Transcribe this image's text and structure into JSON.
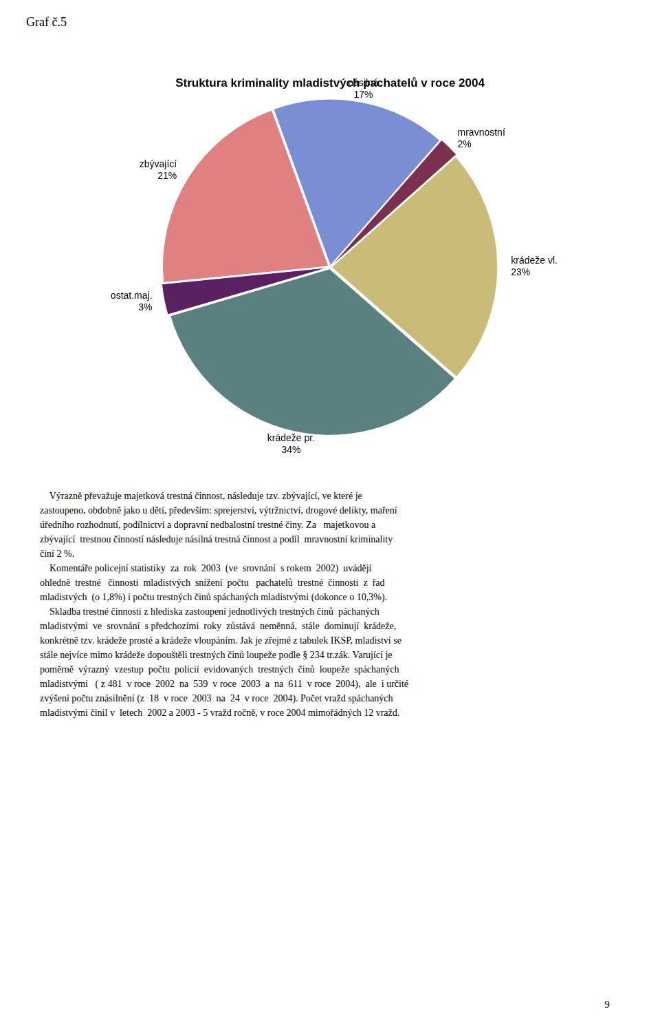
{
  "page_title": "Graf č.5",
  "chart_data": {
    "type": "pie",
    "title": "Struktura kriminality mladistvých pachatelů v roce 2004",
    "categories": [
      "násilná",
      "mravnostní",
      "krádeže vl.",
      "krádeže pr.",
      "ostat.maj.",
      "zbývající"
    ],
    "values": [
      17,
      2,
      23,
      34,
      3,
      21
    ],
    "value_labels": [
      "17%",
      "2%",
      "23%",
      "34%",
      "3%",
      "21%"
    ],
    "colors": [
      "#7b8ed4",
      "#7b3050",
      "#c8bc78",
      "#5a8080",
      "#5a2060",
      "#e08080"
    ],
    "data_labels": true,
    "legend": false
  },
  "body_text": [
    "    Výrazně převažuje majetková trestná činnost, následuje tzv. zbývající, ve které je\nzastoupeno, obdobně jako u dětí, především: sprejerství, výtržnictví, drogové delikty, maření\núředního rozhodnutí, podílnictví a dopravní nedbalostní trestné činy. Za   majetkovou a\nzbývající  trestnou činností následuje násilná trestná činnost a podíl  mravnostní kriminality\nčiní 2 %.",
    "    Komentáře policejní statistiky  za  rok  2003  (ve  srovnání  s rokem  2002)  uvádějí\nohledně  trestné   činnosti  mladistvých  snížení  počtu   pachatelů  trestné  činnosti  z  řad\nmladistvých  (o 1,8%) i počtu trestných činů spáchaných mladistvými (dokonce o 10,3%).",
    "    Skladba trestné činnosti z hlediska zastoupení jednotlivých trestných činů  páchaných\nmladistvými  ve  srovnání  s předchozími  roky  zůstává  neměnná,  stále  dominují  krádeže,\nkonkrétně tzv. krádeže prosté a krádeže vloupáním. Jak je zřejmé z tabulek IKSP, mladiství se\nstále nejvíce mimo krádeže dopouštěli trestných činů loupeže podle § 234 tr.zák. Varující je\npoměrně  výrazný  vzestup  počtu  policií  evidovaných  trestných  činů  loupeže  spáchaných\nmladistvými   ( z 481  v roce  2002  na  539  v roce  2003  a  na  611  v roce  2004),  ale  i určité\nzvýšení počtu znásilnění (z  18  v roce  2003  na  24  v roce  2004). Počet vražd spáchaných\nmladistvými činil v  letech  2002 a 2003 - 5 vražd ročně, v roce 2004 mimořádných 12 vražd."
  ],
  "page_number": "9"
}
